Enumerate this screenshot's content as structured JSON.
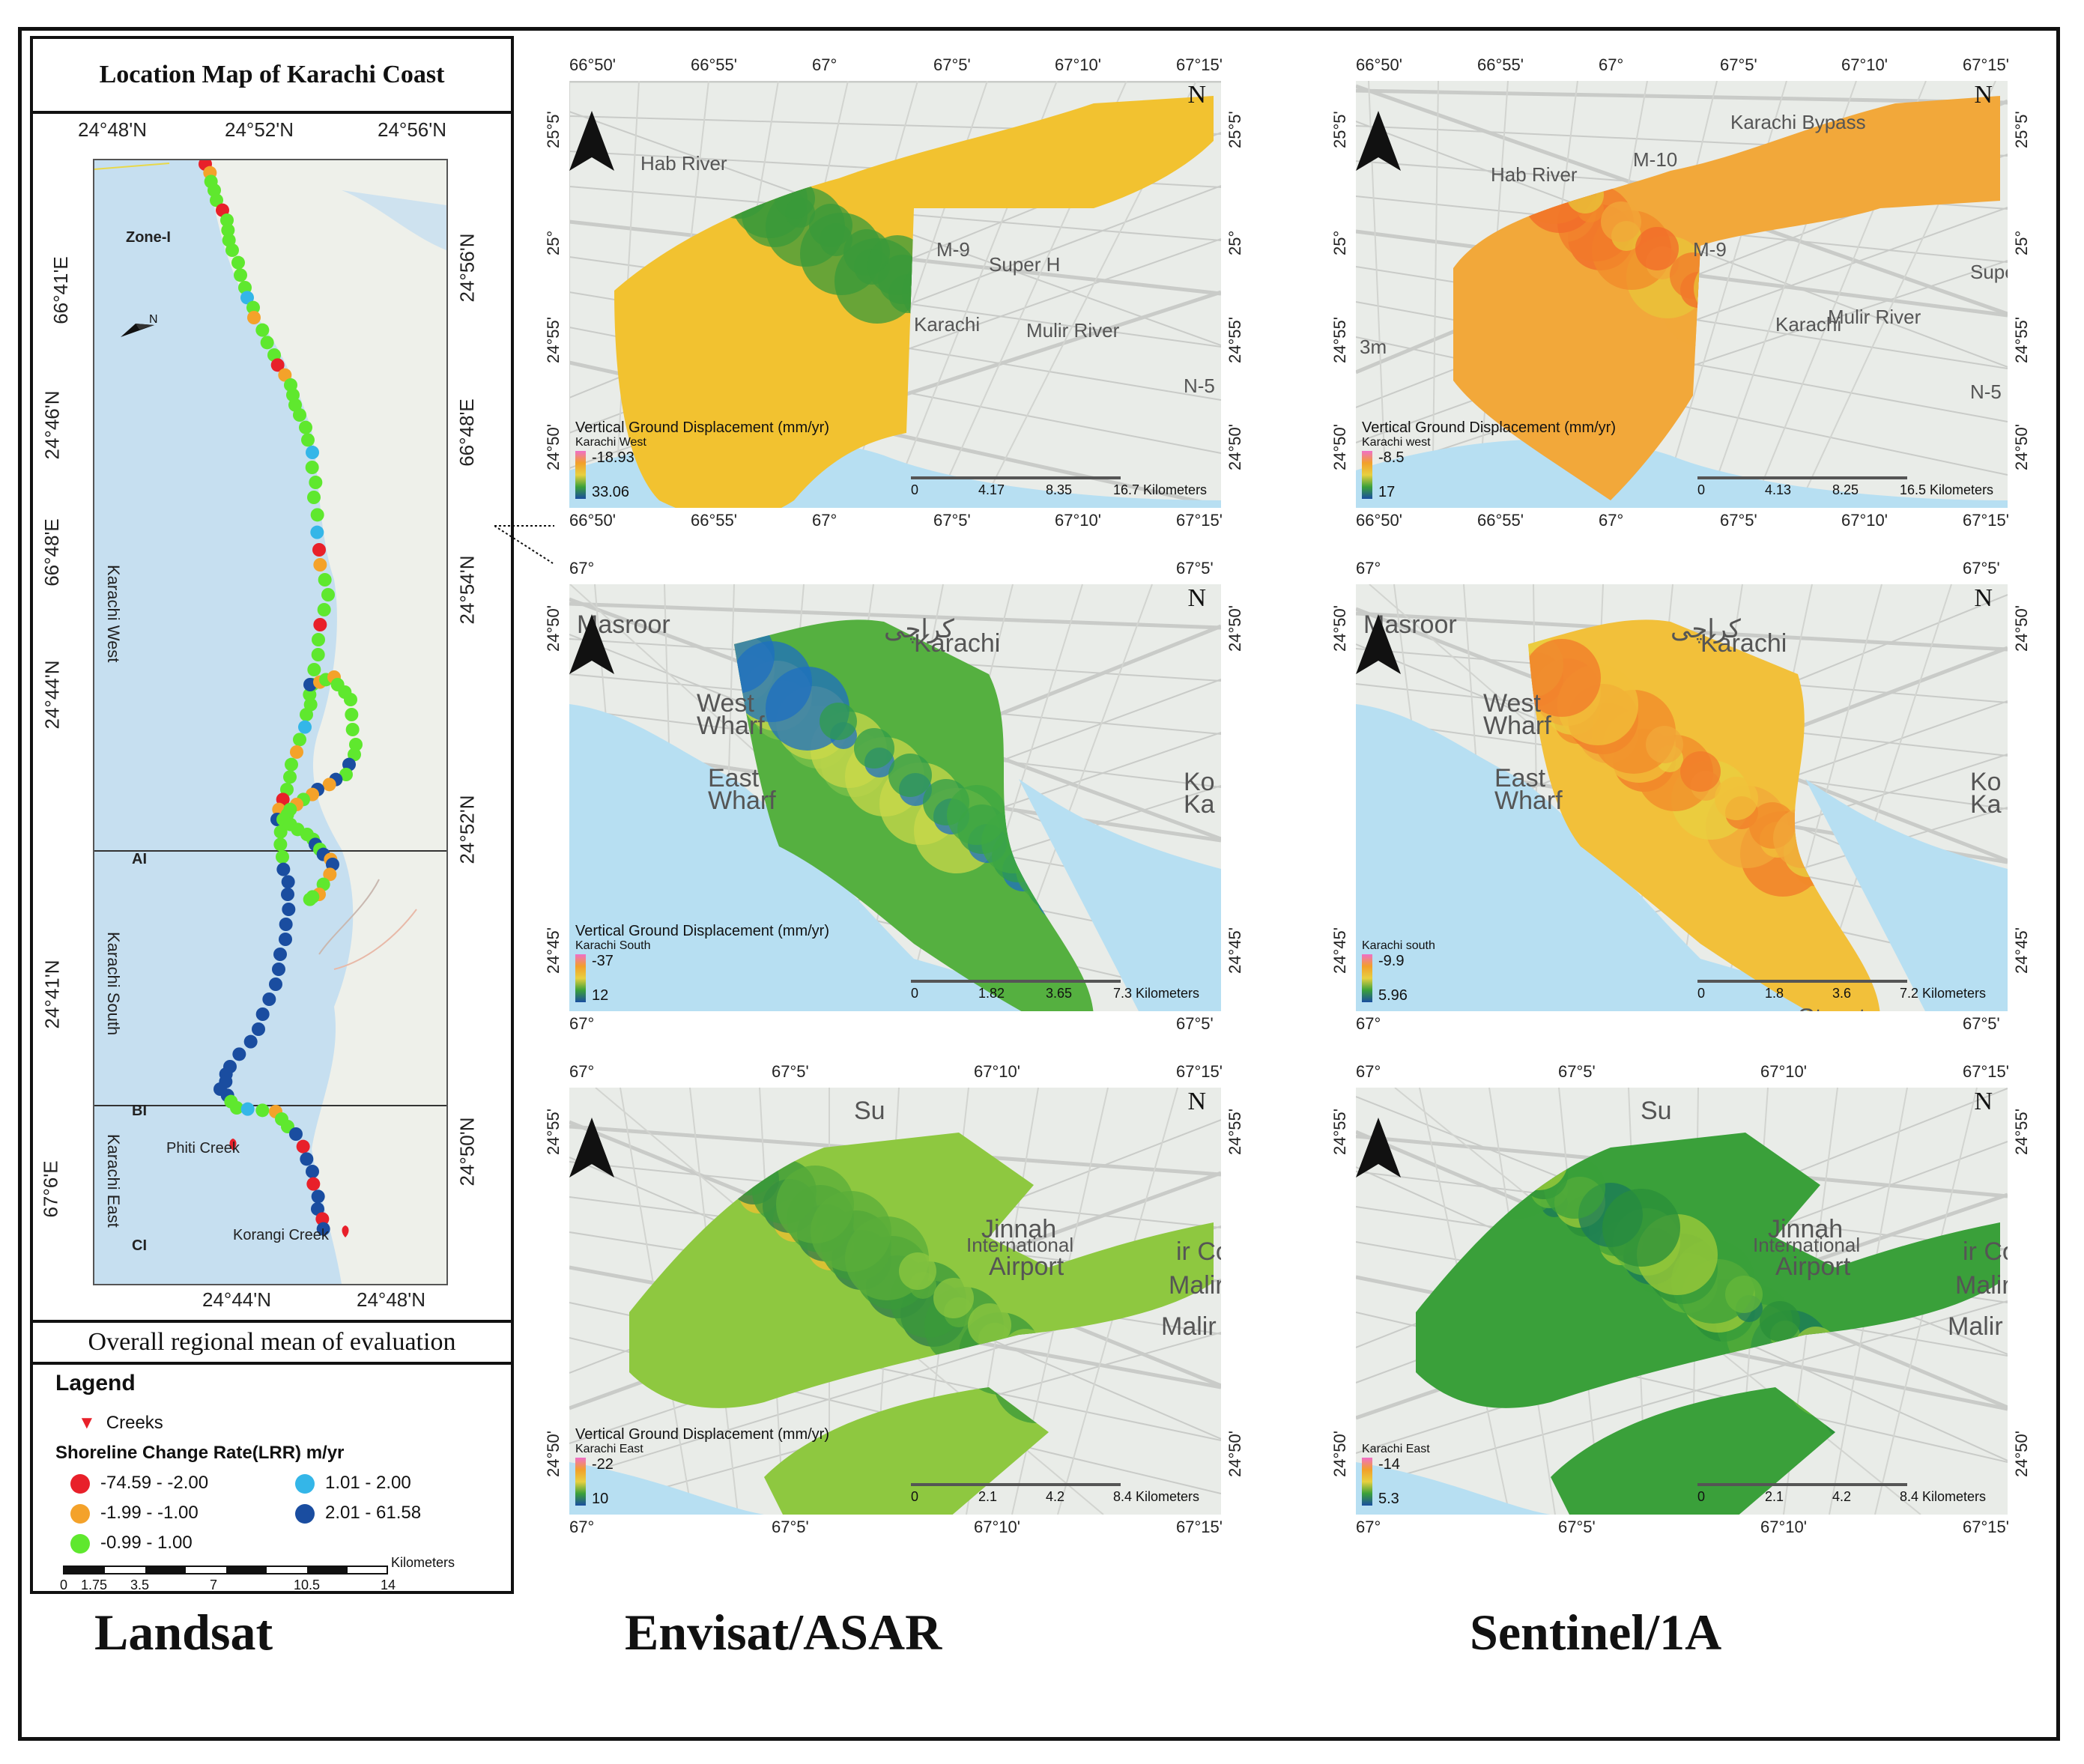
{
  "figure": {
    "left_panel": {
      "title": "Location Map of Karachi Coast",
      "top_ticks": [
        "24°48'N",
        "24°52'N",
        "24°56'N"
      ],
      "bottom_ticks": [
        "24°44'N",
        "24°48'N"
      ],
      "left_ticks": [
        "66°41'E",
        "24°46'N",
        "66°48'E",
        "24°44'N",
        "24°41'N",
        "67°6'E"
      ],
      "right_ticks": [
        "24°56'N",
        "66°48'E",
        "24°54'N",
        "24°52'N",
        "24°50'N"
      ],
      "zone_label": "Zone-I",
      "zone_markers": [
        "AI",
        "BI",
        "CI"
      ],
      "region_labels": [
        "Karachi West",
        "Karachi South",
        "Karachi East"
      ],
      "creek_labels": [
        "Phiti Creek",
        "Korangi Creek"
      ],
      "evaluation_header": "Overall regional mean of evaluation",
      "legend": {
        "title": "Lagend",
        "creeks_label": "Creeks",
        "rate_title": "Shoreline Change Rate(LRR) m/yr",
        "classes": [
          {
            "label": "-74.59 - -2.00",
            "color": "#e8202a"
          },
          {
            "label": "-1.99 - -1.00",
            "color": "#f4a22a"
          },
          {
            "label": "-0.99 - 1.00",
            "color": "#5fe82e"
          },
          {
            "label": "1.01 - 2.00",
            "color": "#34b6e8"
          },
          {
            "label": "2.01 - 61.58",
            "color": "#1a4da0"
          }
        ],
        "scale_unit": "Kilometers",
        "scale_ticks": [
          "0",
          "1.75",
          "3.5",
          "7",
          "10.5",
          "14"
        ]
      }
    },
    "column_captions": [
      "Landsat",
      "Envisat/ASAR",
      "Sentinel/1A"
    ],
    "north_label": "N",
    "tiles": [
      {
        "top_ticks": [
          "66°50'",
          "66°55'",
          "67°",
          "67°5'",
          "67°10'",
          "67°15'"
        ],
        "bottom_ticks": [
          "66°50'",
          "66°55'",
          "67°",
          "67°5'",
          "67°10'",
          "67°15'"
        ],
        "left_ticks": [
          "25°5'",
          "25°",
          "24°55'",
          "24°50'"
        ],
        "right_ticks": [
          "25°5'",
          "25°",
          "24°55'",
          "24°50'"
        ],
        "places": [
          "Hab River",
          "M-9",
          "Super H",
          "Karachi",
          "Mulir River",
          "N-5"
        ],
        "legend_title": "Vertical Ground Displacement (mm/yr)",
        "legend_sub": "Karachi West",
        "legend_max": "-18.93",
        "legend_min": "33.06",
        "scale": [
          "0",
          "4.17",
          "8.35",
          "16.7 Kilometers"
        ]
      },
      {
        "top_ticks": [
          "66°50'",
          "66°55'",
          "67°",
          "67°5'",
          "67°10'",
          "67°15'"
        ],
        "bottom_ticks": [
          "66°50'",
          "66°55'",
          "67°",
          "67°5'",
          "67°10'",
          "67°15'"
        ],
        "left_ticks": [
          "25°5'",
          "25°",
          "24°55'",
          "24°50'"
        ],
        "right_ticks": [
          "25°5'",
          "25°",
          "24°55'",
          "24°50'"
        ],
        "places": [
          "Karachi Bypass",
          "Hab River",
          "M-10",
          "M-9",
          "Super",
          "Karachi",
          "Mulir River",
          "N-5",
          "3m"
        ],
        "legend_title": "Vertical Ground Displacement (mm/yr)",
        "legend_sub": "Karachi west",
        "legend_max": "-8.5",
        "legend_min": "17",
        "scale": [
          "0",
          "4.13",
          "8.25",
          "16.5 Kilometers"
        ]
      },
      {
        "top_ticks": [
          "67°",
          "67°5'"
        ],
        "bottom_ticks": [
          "67°",
          "67°5'"
        ],
        "left_ticks": [
          "24°50'",
          "24°45'"
        ],
        "right_ticks": [
          "24°50'",
          "24°45'"
        ],
        "places": [
          "Masroor",
          "کراچی",
          "Karachi",
          "West",
          "Wharf",
          "East",
          "Wharf",
          "Ko",
          "Ka"
        ],
        "legend_title": "Vertical Ground Displacement (mm/yr)",
        "legend_sub": "Karachi South",
        "legend_max": "-37",
        "legend_min": "12",
        "scale": [
          "0",
          "1.82",
          "3.65",
          "7.3 Kilometers"
        ]
      },
      {
        "top_ticks": [
          "67°",
          "67°5'"
        ],
        "bottom_ticks": [
          "67°",
          "67°5'"
        ],
        "left_ticks": [
          "24°50'",
          "24°45'"
        ],
        "right_ticks": [
          "24°50'",
          "24°45'"
        ],
        "places": [
          "Masroor",
          "کراچی",
          "Karachi",
          "West",
          "Wharf",
          "East",
          "Wharf",
          "Ko",
          "Ka",
          "Street"
        ],
        "legend_title": "",
        "legend_sub": "Karachi south",
        "legend_max": "-9.9",
        "legend_min": "5.96",
        "scale": [
          "0",
          "1.8",
          "3.6",
          "7.2 Kilometers"
        ]
      },
      {
        "top_ticks": [
          "67°",
          "67°5'",
          "67°10'",
          "67°15'"
        ],
        "bottom_ticks": [
          "67°",
          "67°5'",
          "67°10'",
          "67°15'"
        ],
        "left_ticks": [
          "24°55'",
          "24°50'"
        ],
        "right_ticks": [
          "24°55'",
          "24°50'"
        ],
        "places": [
          "Jinnah",
          "International",
          "Airport",
          "ir Colo",
          "Malir JK",
          "Malir",
          "Su"
        ],
        "legend_title": "Vertical Ground Displacement (mm/yr)",
        "legend_sub": "Karachi East",
        "legend_max": "-22",
        "legend_min": "10",
        "scale": [
          "0",
          "2.1",
          "4.2",
          "8.4 Kilometers"
        ]
      },
      {
        "top_ticks": [
          "67°",
          "67°5'",
          "67°10'",
          "67°15'"
        ],
        "bottom_ticks": [
          "67°",
          "67°5'",
          "67°10'",
          "67°15'"
        ],
        "left_ticks": [
          "24°55'",
          "24°50'"
        ],
        "right_ticks": [
          "24°55'",
          "24°50'"
        ],
        "places": [
          "Jinnah",
          "International",
          "Airport",
          "ir Colo",
          "Malir JK",
          "Malir",
          "Su"
        ],
        "legend_title": "",
        "legend_sub": "Karachi East",
        "legend_max": "-14",
        "legend_min": "5.3",
        "scale": [
          "0",
          "2.1",
          "4.2",
          "8.4 Kilometers"
        ]
      }
    ]
  }
}
